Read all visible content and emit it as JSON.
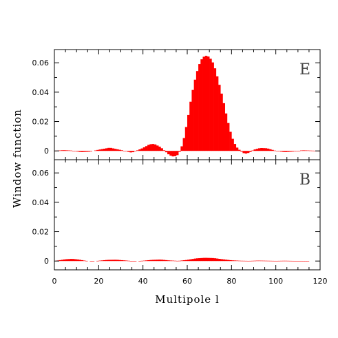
{
  "chart_data": {
    "type": "area",
    "xlabel": "Multipole l",
    "ylabel": "Window function",
    "xlim": [
      0,
      120
    ],
    "x_ticks": [
      0,
      20,
      40,
      60,
      80,
      100,
      120
    ],
    "x_tick_labels": [
      "0",
      "20",
      "40",
      "60",
      "80",
      "100",
      "120"
    ],
    "ylim": [
      -0.006,
      0.069
    ],
    "y_ticks": [
      0,
      0.02,
      0.04,
      0.06
    ],
    "y_tick_labels": [
      "0",
      "0.02",
      "0.04",
      "0.06"
    ],
    "colors": {
      "fill": "#ff0000",
      "axis": "#000000",
      "panel_label": "#444444"
    },
    "panels": [
      {
        "label": "E",
        "x": [
          0,
          4,
          8,
          12,
          16,
          20,
          25,
          30,
          35,
          40,
          43,
          45,
          48,
          52,
          54,
          56,
          58,
          60,
          62,
          64,
          66,
          68,
          70,
          72,
          74,
          76,
          78,
          80,
          82,
          84,
          86,
          88,
          90,
          93,
          96,
          100,
          104,
          108,
          112,
          116,
          120
        ],
        "values": [
          0,
          0.0005,
          0.0002,
          -0.0008,
          -0.0005,
          0.0008,
          0.0022,
          0.0006,
          -0.0012,
          0.002,
          0.0045,
          0.0048,
          0.0025,
          -0.003,
          -0.004,
          -0.0025,
          0.005,
          0.02,
          0.038,
          0.052,
          0.0615,
          0.065,
          0.064,
          0.059,
          0.048,
          0.036,
          0.022,
          0.01,
          0.003,
          0.0,
          -0.002,
          -0.0012,
          0.0008,
          0.002,
          0.0018,
          0.0,
          -0.0008,
          -0.0004,
          0.0004,
          0.0002,
          0
        ]
      },
      {
        "label": "B",
        "x": [
          0,
          2,
          5,
          8,
          11,
          14,
          17,
          20,
          24,
          28,
          32,
          36,
          40,
          44,
          48,
          52,
          56,
          60,
          64,
          68,
          72,
          76,
          80,
          84,
          88,
          92,
          96,
          100,
          104,
          108,
          112,
          116,
          120
        ],
        "values": [
          0,
          0.0005,
          0.0012,
          0.0015,
          0.001,
          0.0002,
          -0.0002,
          0.0002,
          0.0008,
          0.0009,
          0.0004,
          -0.0001,
          0.0002,
          0.0008,
          0.001,
          0.0004,
          0.0001,
          0.0008,
          0.0018,
          0.0022,
          0.002,
          0.0012,
          0.0005,
          0.0002,
          0.0001,
          0.0003,
          0.0002,
          0.0001,
          0.0002,
          0.0001,
          0.0001,
          0.0,
          0
        ]
      }
    ]
  }
}
